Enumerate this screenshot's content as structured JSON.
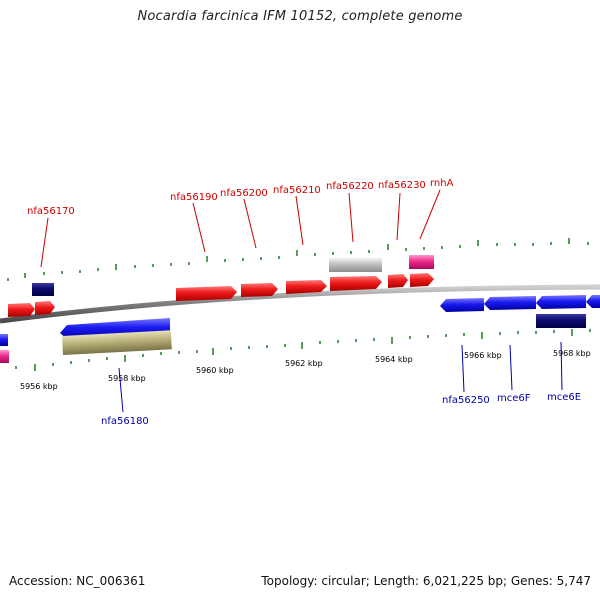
{
  "title": "Nocardia farcinica IFM 10152, complete genome",
  "footer": {
    "accession": "Accession: NC_006361",
    "topology": "Topology: circular; Length: 6,021,225 bp; Genes: 5,747"
  },
  "colors": {
    "backbone": "#8a8a8a",
    "tick": "#1f7a1f",
    "forward_gene": "#e8101a",
    "reverse_gene": "#1a1aee",
    "dark_gene": "#0a0a6e",
    "grey_gene": "#bcbcbc",
    "pink_gene": "#ee2a8c",
    "olive_gene": "#b8b078",
    "forward_label": "#cc0000",
    "reverse_label": "#0000aa",
    "scale_label": "#000000"
  },
  "scale_labels": [
    "5956 kbp",
    "5958 kbp",
    "5960 kbp",
    "5962 kbp",
    "5964 kbp",
    "5966 kbp",
    "5968 kbp"
  ],
  "gene_labels": {
    "forward": [
      "nfa56170",
      "nfa56190",
      "nfa56200",
      "nfa56210",
      "nfa56220",
      "nfa56230",
      "rnhA"
    ],
    "reverse": [
      "nfa56180",
      "nfa56250",
      "mce6F",
      "mce6E"
    ]
  }
}
